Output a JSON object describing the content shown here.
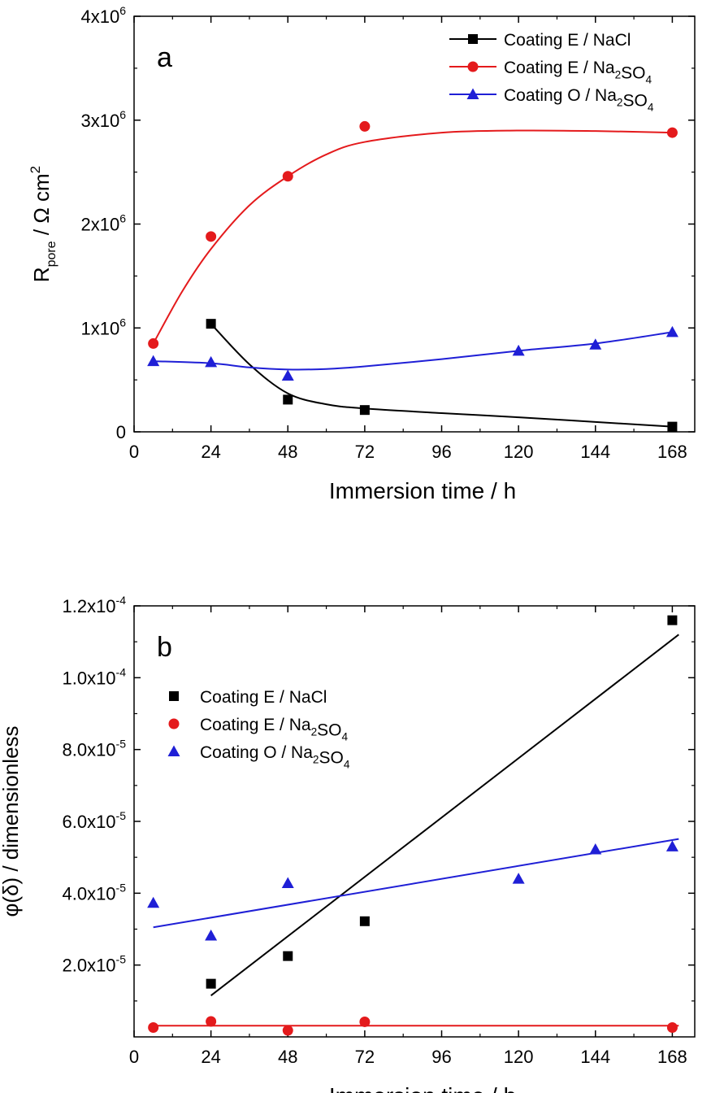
{
  "chart_data": [
    {
      "type": "scatter",
      "panel_label": "a",
      "xlabel": "Immersion time / h",
      "ylabel": "R_pore / Ω cm²",
      "xlim": [
        0,
        175
      ],
      "ylim": [
        0,
        4000000
      ],
      "xticks": [
        "0",
        "24",
        "48",
        "72",
        "96",
        "120",
        "144",
        "168"
      ],
      "yticks": [
        {
          "value": 0,
          "base": "0",
          "exp": ""
        },
        {
          "value": 1000000,
          "base": "1x10",
          "exp": "6"
        },
        {
          "value": 2000000,
          "base": "2x10",
          "exp": "6"
        },
        {
          "value": 3000000,
          "base": "3x10",
          "exp": "6"
        },
        {
          "value": 4000000,
          "base": "4x10",
          "exp": "6"
        }
      ],
      "legend_position": "top-right",
      "series": [
        {
          "name": "Coating E / NaCl",
          "color": "#000000",
          "marker": "square",
          "x": [
            24,
            48,
            72,
            168
          ],
          "y": [
            1040000,
            310000,
            210000,
            50000
          ],
          "fit_curve": [
            [
              24,
              1040000
            ],
            [
              36,
              650000
            ],
            [
              48,
              370000
            ],
            [
              60,
              265000
            ],
            [
              72,
              225000
            ],
            [
              96,
              180000
            ],
            [
              120,
              140000
            ],
            [
              144,
              95000
            ],
            [
              168,
              50000
            ]
          ]
        },
        {
          "name": "Coating E / Na₂SO₄",
          "color": "#e41a1c",
          "marker": "circle",
          "x": [
            6,
            24,
            48,
            72,
            168
          ],
          "y": [
            850000,
            1880000,
            2460000,
            2940000,
            2880000
          ],
          "fit_curve": [
            [
              6,
              850000
            ],
            [
              15,
              1350000
            ],
            [
              24,
              1760000
            ],
            [
              36,
              2180000
            ],
            [
              48,
              2460000
            ],
            [
              60,
              2670000
            ],
            [
              72,
              2790000
            ],
            [
              96,
              2880000
            ],
            [
              120,
              2900000
            ],
            [
              144,
              2895000
            ],
            [
              168,
              2880000
            ]
          ]
        },
        {
          "name": "Coating O / Na₂SO₄",
          "color": "#1f1fd6",
          "marker": "triangle",
          "x": [
            6,
            24,
            48,
            120,
            144,
            168
          ],
          "y": [
            680000,
            670000,
            540000,
            780000,
            840000,
            960000
          ],
          "fit_curve": [
            [
              6,
              680000
            ],
            [
              24,
              660000
            ],
            [
              36,
              620000
            ],
            [
              48,
              600000
            ],
            [
              60,
              605000
            ],
            [
              72,
              630000
            ],
            [
              96,
              700000
            ],
            [
              120,
              780000
            ],
            [
              144,
              850000
            ],
            [
              168,
              960000
            ]
          ]
        }
      ]
    },
    {
      "type": "scatter",
      "panel_label": "b",
      "xlabel": "Immersion time / h",
      "ylabel": "φ(δ) / dimensionless",
      "xlim": [
        0,
        175
      ],
      "ylim": [
        0,
        0.00012
      ],
      "xticks": [
        "0",
        "24",
        "48",
        "72",
        "96",
        "120",
        "144",
        "168"
      ],
      "yticks": [
        {
          "value": 2e-05,
          "base": "2.0x10",
          "exp": "-5"
        },
        {
          "value": 4e-05,
          "base": "4.0x10",
          "exp": "-5"
        },
        {
          "value": 6e-05,
          "base": "6.0x10",
          "exp": "-5"
        },
        {
          "value": 8e-05,
          "base": "8.0x10",
          "exp": "-5"
        },
        {
          "value": 0.0001,
          "base": "1.0x10",
          "exp": "-4"
        },
        {
          "value": 0.00012,
          "base": "1.2x10",
          "exp": "-4"
        }
      ],
      "legend_position": "top-left",
      "series": [
        {
          "name": "Coating E / NaCl",
          "color": "#000000",
          "marker": "square",
          "x": [
            24,
            48,
            72,
            168
          ],
          "y": [
            1.48e-05,
            2.25e-05,
            3.22e-05,
            0.000116
          ],
          "fit_line": [
            [
              24,
              1.15e-05
            ],
            [
              170,
              0.000112
            ]
          ]
        },
        {
          "name": "Coating E / Na₂SO₄",
          "color": "#e41a1c",
          "marker": "circle",
          "x": [
            6,
            24,
            48,
            72,
            168
          ],
          "y": [
            2.6e-06,
            4.3e-06,
            1.8e-06,
            4.2e-06,
            2.6e-06
          ],
          "fit_line": [
            [
              6,
              3.1e-06
            ],
            [
              170,
              3.1e-06
            ]
          ]
        },
        {
          "name": "Coating O / Na₂SO₄",
          "color": "#1f1fd6",
          "marker": "triangle",
          "x": [
            6,
            24,
            48,
            120,
            144,
            168
          ],
          "y": [
            3.73e-05,
            2.82e-05,
            4.28e-05,
            4.4e-05,
            5.22e-05,
            5.3e-05
          ],
          "fit_line": [
            [
              6,
              3.05e-05
            ],
            [
              170,
              5.51e-05
            ]
          ]
        }
      ]
    }
  ]
}
